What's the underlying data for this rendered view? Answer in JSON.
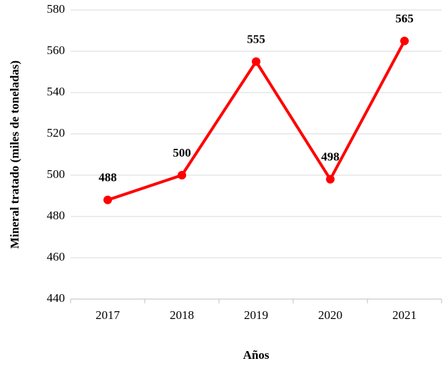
{
  "chart_data": {
    "type": "line",
    "categories": [
      "2017",
      "2018",
      "2019",
      "2020",
      "2021"
    ],
    "series": [
      {
        "name": "Mineral tratado",
        "color": "#ff0000",
        "values": [
          488,
          500,
          555,
          498,
          565
        ]
      }
    ],
    "ylim": [
      440,
      580
    ],
    "yticks": [
      440,
      460,
      480,
      500,
      520,
      540,
      560,
      580
    ],
    "grid": true,
    "xlabel": "Años",
    "ylabel": "Mineral tratado (miles de toneladas)"
  }
}
